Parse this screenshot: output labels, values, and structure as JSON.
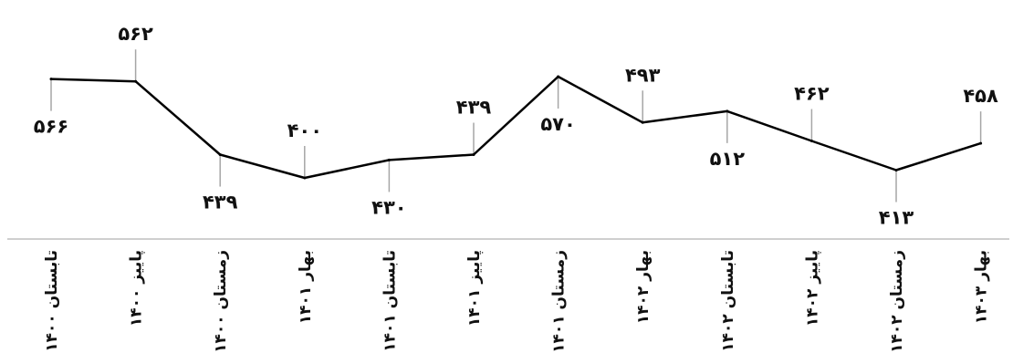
{
  "chart_data": {
    "type": "line",
    "categories": [
      "تابستان ۱۴۰۰",
      "پاییز ۱۴۰۰",
      "زمستان ۱۴۰۰",
      "بهار ۱۴۰۱",
      "تابستان ۱۴۰۱",
      "پاییز ۱۴۰۱",
      "زمستان ۱۴۰۱",
      "بهار ۱۴۰۲",
      "تابستان ۱۴۰۲",
      "پاییز ۱۴۰۲",
      "زمستان ۱۴۰۲",
      "بهار ۱۴۰۳"
    ],
    "values": [
      566,
      562,
      439,
      400,
      430,
      439,
      570,
      493,
      512,
      462,
      413,
      458
    ],
    "value_labels": [
      "۵۶۶",
      "۵۶۲",
      "۴۳۹",
      "۴۰۰",
      "۴۳۰",
      "۴۳۹",
      "۵۷۰",
      "۴۹۳",
      "۵۱۲",
      "۴۶۲",
      "۴۱۳",
      "۴۵۸"
    ],
    "label_positions": [
      "below",
      "above",
      "below",
      "above",
      "below",
      "above",
      "below",
      "above",
      "below",
      "above",
      "below",
      "above"
    ],
    "title": "",
    "xlabel": "",
    "ylabel": "",
    "ylim": [
      400,
      570
    ],
    "grid": false,
    "legend": "none",
    "line_color": "#000000",
    "leader_color": "#a6a6a6",
    "axis_color": "#bfbfbf"
  }
}
